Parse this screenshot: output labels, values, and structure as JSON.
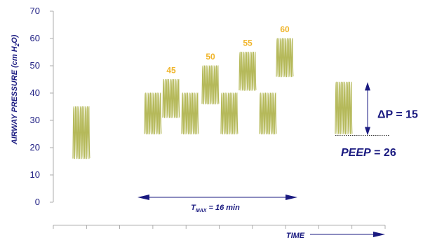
{
  "chart_data": {
    "type": "line",
    "ylabel_main": "AIRWAY PRESSURE (cm H",
    "ylabel_sub": "2",
    "ylabel_end": "O)",
    "xlabel": "TIME",
    "ylim": [
      0,
      70
    ],
    "yticks": [
      "0",
      "10",
      "20",
      "30",
      "40",
      "50",
      "60",
      "70"
    ],
    "x_tick_count": 10,
    "oscillation_color": "#b5b95a",
    "label_color": "#f0b429",
    "axis_text_color": "#1a1a80",
    "bursts": [
      {
        "low": 16,
        "high": 35
      },
      {
        "low": 25,
        "high": 40
      },
      {
        "low": 31,
        "high": 45,
        "label": "45"
      },
      {
        "low": 25,
        "high": 40
      },
      {
        "low": 36,
        "high": 50,
        "label": "50"
      },
      {
        "low": 25,
        "high": 40
      },
      {
        "low": 41,
        "high": 55,
        "label": "55"
      },
      {
        "low": 25,
        "high": 40
      },
      {
        "low": 46,
        "high": 60,
        "label": "60"
      },
      {
        "low": 25,
        "high": 44
      }
    ],
    "annotations": {
      "delta_p": "ΔP = 15",
      "peep_main": "PEEP",
      "peep_value": "= 26",
      "tmax_T": "T",
      "tmax_sub": "MAX",
      "tmax_rest": " = 16 min"
    }
  }
}
